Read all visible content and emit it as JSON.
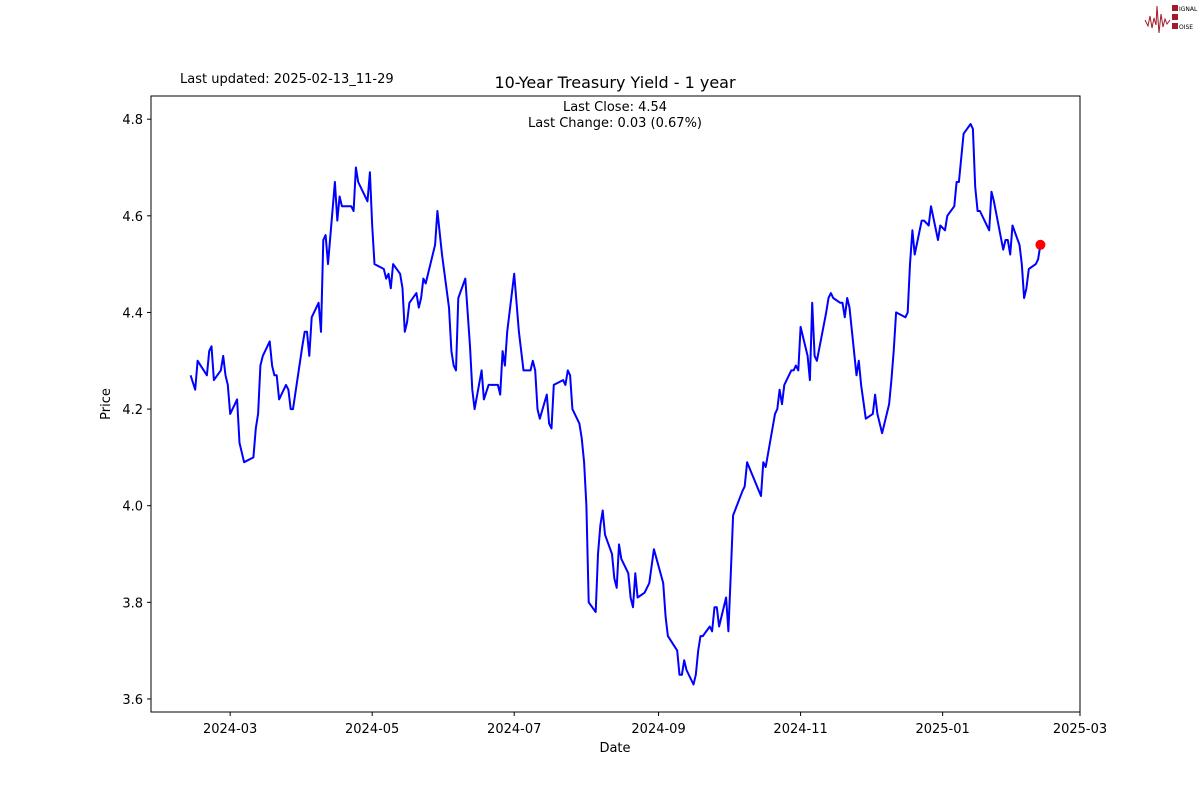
{
  "logo": {
    "text": "SIGNAL 2 NOISE",
    "color": "#a01c2a"
  },
  "header": {
    "last_updated": "Last updated: 2025-02-13_11-29"
  },
  "annotations": {
    "last_close": "Last Close: 4.54",
    "last_change": "Last Change: 0.03 (0.67%)"
  },
  "chart_data": {
    "type": "line",
    "title": "10-Year Treasury Yield - 1 year",
    "xlabel": "Date",
    "ylabel": "Price",
    "xlim": [
      "2024-01-27",
      "2025-03-01"
    ],
    "ylim": [
      3.573,
      4.848
    ],
    "grid": false,
    "line_color": "#0000ff",
    "last_point_color": "#ff0000",
    "x_ticks": [
      "2024-03",
      "2024-05",
      "2024-07",
      "2024-09",
      "2024-11",
      "2025-01",
      "2025-03"
    ],
    "y_ticks": [
      "3.6",
      "3.8",
      "4.0",
      "4.2",
      "4.4",
      "4.6",
      "4.8"
    ],
    "series": [
      {
        "points": [
          [
            "2024-02-13",
            4.27
          ],
          [
            "2024-02-15",
            4.24
          ],
          [
            "2024-02-16",
            4.3
          ],
          [
            "2024-02-20",
            4.27
          ],
          [
            "2024-02-21",
            4.32
          ],
          [
            "2024-02-22",
            4.33
          ],
          [
            "2024-02-23",
            4.26
          ],
          [
            "2024-02-26",
            4.28
          ],
          [
            "2024-02-27",
            4.31
          ],
          [
            "2024-02-28",
            4.27
          ],
          [
            "2024-02-29",
            4.25
          ],
          [
            "2024-03-01",
            4.19
          ],
          [
            "2024-03-04",
            4.22
          ],
          [
            "2024-03-05",
            4.13
          ],
          [
            "2024-03-07",
            4.09
          ],
          [
            "2024-03-11",
            4.1
          ],
          [
            "2024-03-12",
            4.16
          ],
          [
            "2024-03-13",
            4.19
          ],
          [
            "2024-03-14",
            4.29
          ],
          [
            "2024-03-15",
            4.31
          ],
          [
            "2024-03-18",
            4.34
          ],
          [
            "2024-03-19",
            4.29
          ],
          [
            "2024-03-20",
            4.27
          ],
          [
            "2024-03-21",
            4.27
          ],
          [
            "2024-03-22",
            4.22
          ],
          [
            "2024-03-25",
            4.25
          ],
          [
            "2024-03-26",
            4.24
          ],
          [
            "2024-03-27",
            4.2
          ],
          [
            "2024-03-28",
            4.2
          ],
          [
            "2024-04-01",
            4.33
          ],
          [
            "2024-04-02",
            4.36
          ],
          [
            "2024-04-03",
            4.36
          ],
          [
            "2024-04-04",
            4.31
          ],
          [
            "2024-04-05",
            4.39
          ],
          [
            "2024-04-08",
            4.42
          ],
          [
            "2024-04-09",
            4.36
          ],
          [
            "2024-04-10",
            4.55
          ],
          [
            "2024-04-11",
            4.56
          ],
          [
            "2024-04-12",
            4.5
          ],
          [
            "2024-04-15",
            4.67
          ],
          [
            "2024-04-16",
            4.59
          ],
          [
            "2024-04-17",
            4.64
          ],
          [
            "2024-04-18",
            4.62
          ],
          [
            "2024-04-22",
            4.62
          ],
          [
            "2024-04-23",
            4.61
          ],
          [
            "2024-04-24",
            4.7
          ],
          [
            "2024-04-25",
            4.67
          ],
          [
            "2024-04-29",
            4.63
          ],
          [
            "2024-04-30",
            4.69
          ],
          [
            "2024-05-01",
            4.58
          ],
          [
            "2024-05-02",
            4.5
          ],
          [
            "2024-05-06",
            4.49
          ],
          [
            "2024-05-07",
            4.47
          ],
          [
            "2024-05-08",
            4.48
          ],
          [
            "2024-05-09",
            4.45
          ],
          [
            "2024-05-10",
            4.5
          ],
          [
            "2024-05-13",
            4.48
          ],
          [
            "2024-05-14",
            4.45
          ],
          [
            "2024-05-15",
            4.36
          ],
          [
            "2024-05-16",
            4.38
          ],
          [
            "2024-05-17",
            4.42
          ],
          [
            "2024-05-20",
            4.44
          ],
          [
            "2024-05-21",
            4.41
          ],
          [
            "2024-05-22",
            4.43
          ],
          [
            "2024-05-23",
            4.47
          ],
          [
            "2024-05-24",
            4.46
          ],
          [
            "2024-05-28",
            4.54
          ],
          [
            "2024-05-29",
            4.61
          ],
          [
            "2024-05-31",
            4.52
          ],
          [
            "2024-06-03",
            4.41
          ],
          [
            "2024-06-04",
            4.32
          ],
          [
            "2024-06-05",
            4.29
          ],
          [
            "2024-06-06",
            4.28
          ],
          [
            "2024-06-07",
            4.43
          ],
          [
            "2024-06-10",
            4.47
          ],
          [
            "2024-06-12",
            4.33
          ],
          [
            "2024-06-13",
            4.24
          ],
          [
            "2024-06-14",
            4.2
          ],
          [
            "2024-06-17",
            4.28
          ],
          [
            "2024-06-18",
            4.22
          ],
          [
            "2024-06-20",
            4.25
          ],
          [
            "2024-06-24",
            4.25
          ],
          [
            "2024-06-25",
            4.23
          ],
          [
            "2024-06-26",
            4.32
          ],
          [
            "2024-06-27",
            4.29
          ],
          [
            "2024-06-28",
            4.36
          ],
          [
            "2024-07-01",
            4.48
          ],
          [
            "2024-07-03",
            4.36
          ],
          [
            "2024-07-05",
            4.28
          ],
          [
            "2024-07-08",
            4.28
          ],
          [
            "2024-07-09",
            4.3
          ],
          [
            "2024-07-10",
            4.28
          ],
          [
            "2024-07-11",
            4.2
          ],
          [
            "2024-07-12",
            4.18
          ],
          [
            "2024-07-15",
            4.23
          ],
          [
            "2024-07-16",
            4.17
          ],
          [
            "2024-07-17",
            4.16
          ],
          [
            "2024-07-18",
            4.25
          ],
          [
            "2024-07-22",
            4.26
          ],
          [
            "2024-07-23",
            4.25
          ],
          [
            "2024-07-24",
            4.28
          ],
          [
            "2024-07-25",
            4.27
          ],
          [
            "2024-07-26",
            4.2
          ],
          [
            "2024-07-29",
            4.17
          ],
          [
            "2024-07-30",
            4.14
          ],
          [
            "2024-07-31",
            4.09
          ],
          [
            "2024-08-01",
            4.0
          ],
          [
            "2024-08-02",
            3.8
          ],
          [
            "2024-08-05",
            3.78
          ],
          [
            "2024-08-06",
            3.9
          ],
          [
            "2024-08-07",
            3.96
          ],
          [
            "2024-08-08",
            3.99
          ],
          [
            "2024-08-09",
            3.94
          ],
          [
            "2024-08-12",
            3.9
          ],
          [
            "2024-08-13",
            3.85
          ],
          [
            "2024-08-14",
            3.83
          ],
          [
            "2024-08-15",
            3.92
          ],
          [
            "2024-08-16",
            3.89
          ],
          [
            "2024-08-19",
            3.86
          ],
          [
            "2024-08-20",
            3.81
          ],
          [
            "2024-08-21",
            3.79
          ],
          [
            "2024-08-22",
            3.86
          ],
          [
            "2024-08-23",
            3.81
          ],
          [
            "2024-08-26",
            3.82
          ],
          [
            "2024-08-28",
            3.84
          ],
          [
            "2024-08-30",
            3.91
          ],
          [
            "2024-09-03",
            3.84
          ],
          [
            "2024-09-04",
            3.77
          ],
          [
            "2024-09-05",
            3.73
          ],
          [
            "2024-09-09",
            3.7
          ],
          [
            "2024-09-10",
            3.65
          ],
          [
            "2024-09-11",
            3.65
          ],
          [
            "2024-09-12",
            3.68
          ],
          [
            "2024-09-13",
            3.66
          ],
          [
            "2024-09-16",
            3.63
          ],
          [
            "2024-09-17",
            3.65
          ],
          [
            "2024-09-18",
            3.7
          ],
          [
            "2024-09-19",
            3.73
          ],
          [
            "2024-09-20",
            3.73
          ],
          [
            "2024-09-23",
            3.75
          ],
          [
            "2024-09-24",
            3.74
          ],
          [
            "2024-09-25",
            3.79
          ],
          [
            "2024-09-26",
            3.79
          ],
          [
            "2024-09-27",
            3.75
          ],
          [
            "2024-09-30",
            3.81
          ],
          [
            "2024-10-01",
            3.74
          ],
          [
            "2024-10-02",
            3.86
          ],
          [
            "2024-10-03",
            3.98
          ],
          [
            "2024-10-07",
            4.03
          ],
          [
            "2024-10-08",
            4.04
          ],
          [
            "2024-10-09",
            4.09
          ],
          [
            "2024-10-15",
            4.02
          ],
          [
            "2024-10-16",
            4.09
          ],
          [
            "2024-10-17",
            4.08
          ],
          [
            "2024-10-21",
            4.19
          ],
          [
            "2024-10-22",
            4.2
          ],
          [
            "2024-10-23",
            4.24
          ],
          [
            "2024-10-24",
            4.21
          ],
          [
            "2024-10-25",
            4.25
          ],
          [
            "2024-10-28",
            4.28
          ],
          [
            "2024-10-29",
            4.28
          ],
          [
            "2024-10-30",
            4.29
          ],
          [
            "2024-10-31",
            4.28
          ],
          [
            "2024-11-01",
            4.37
          ],
          [
            "2024-11-04",
            4.31
          ],
          [
            "2024-11-05",
            4.26
          ],
          [
            "2024-11-06",
            4.42
          ],
          [
            "2024-11-07",
            4.31
          ],
          [
            "2024-11-08",
            4.3
          ],
          [
            "2024-11-12",
            4.4
          ],
          [
            "2024-11-13",
            4.43
          ],
          [
            "2024-11-14",
            4.44
          ],
          [
            "2024-11-15",
            4.43
          ],
          [
            "2024-11-18",
            4.42
          ],
          [
            "2024-11-19",
            4.42
          ],
          [
            "2024-11-20",
            4.39
          ],
          [
            "2024-11-21",
            4.43
          ],
          [
            "2024-11-22",
            4.41
          ],
          [
            "2024-11-25",
            4.27
          ],
          [
            "2024-11-26",
            4.3
          ],
          [
            "2024-11-27",
            4.25
          ],
          [
            "2024-11-29",
            4.18
          ],
          [
            "2024-12-02",
            4.19
          ],
          [
            "2024-12-03",
            4.23
          ],
          [
            "2024-12-04",
            4.19
          ],
          [
            "2024-12-06",
            4.15
          ],
          [
            "2024-12-09",
            4.21
          ],
          [
            "2024-12-10",
            4.26
          ],
          [
            "2024-12-11",
            4.32
          ],
          [
            "2024-12-12",
            4.4
          ],
          [
            "2024-12-16",
            4.39
          ],
          [
            "2024-12-17",
            4.4
          ],
          [
            "2024-12-18",
            4.5
          ],
          [
            "2024-12-19",
            4.57
          ],
          [
            "2024-12-20",
            4.52
          ],
          [
            "2024-12-23",
            4.59
          ],
          [
            "2024-12-24",
            4.59
          ],
          [
            "2024-12-26",
            4.58
          ],
          [
            "2024-12-27",
            4.62
          ],
          [
            "2024-12-30",
            4.55
          ],
          [
            "2024-12-31",
            4.58
          ],
          [
            "2025-01-02",
            4.57
          ],
          [
            "2025-01-03",
            4.6
          ],
          [
            "2025-01-06",
            4.62
          ],
          [
            "2025-01-07",
            4.67
          ],
          [
            "2025-01-08",
            4.67
          ],
          [
            "2025-01-10",
            4.77
          ],
          [
            "2025-01-13",
            4.79
          ],
          [
            "2025-01-14",
            4.78
          ],
          [
            "2025-01-15",
            4.66
          ],
          [
            "2025-01-16",
            4.61
          ],
          [
            "2025-01-17",
            4.61
          ],
          [
            "2025-01-21",
            4.57
          ],
          [
            "2025-01-22",
            4.65
          ],
          [
            "2025-01-23",
            4.63
          ],
          [
            "2025-01-27",
            4.53
          ],
          [
            "2025-01-28",
            4.55
          ],
          [
            "2025-01-29",
            4.55
          ],
          [
            "2025-01-30",
            4.52
          ],
          [
            "2025-01-31",
            4.58
          ],
          [
            "2025-02-03",
            4.54
          ],
          [
            "2025-02-04",
            4.5
          ],
          [
            "2025-02-05",
            4.43
          ],
          [
            "2025-02-06",
            4.45
          ],
          [
            "2025-02-07",
            4.49
          ],
          [
            "2025-02-10",
            4.5
          ],
          [
            "2025-02-11",
            4.51
          ],
          [
            "2025-02-12",
            4.54
          ]
        ]
      }
    ],
    "last_point": [
      "2025-02-12",
      4.54
    ]
  }
}
